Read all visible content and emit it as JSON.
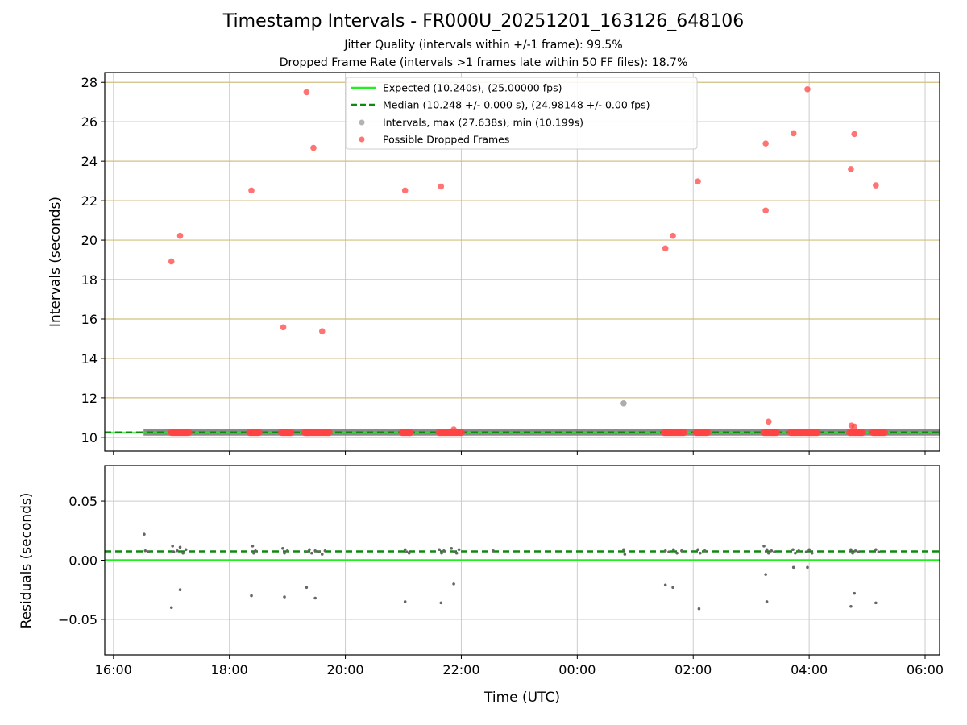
{
  "chart_data": [
    {
      "type": "scatter",
      "title": "Timestamp Intervals - FR000U_20251201_163126_648106",
      "subtitles": [
        "Jitter Quality (intervals within +/-1 frame): 99.5%",
        "Dropped Frame Rate (intervals >1 frames late within 50 FF files): 18.7%"
      ],
      "xlabel": "",
      "ylabel": "Intervals (seconds)",
      "xlim": [
        15.85,
        30.25
      ],
      "ylim": [
        9.3,
        28.5
      ],
      "x_unit": "hours since 00:00 of the first day (UTC)",
      "x_ticks": [
        16,
        18,
        20,
        22,
        24,
        26,
        28,
        30
      ],
      "x_tick_labels": [
        "16:00",
        "18:00",
        "20:00",
        "22:00",
        "00:00",
        "02:00",
        "04:00",
        "06:00"
      ],
      "y_ticks": [
        10,
        12,
        14,
        16,
        18,
        20,
        22,
        24,
        26,
        28
      ],
      "y_tick_labels": [
        "10",
        "12",
        "14",
        "16",
        "18",
        "20",
        "22",
        "24",
        "26",
        "28"
      ],
      "grid": true,
      "expected_interval": 10.24,
      "median_interval": 10.248,
      "legend": {
        "placement": "upper center",
        "entries": [
          {
            "label": "Expected (10.240s), (25.00000 fps)",
            "color": "#22ee22",
            "style": "solid-line"
          },
          {
            "label": "Median (10.248 +/- 0.000 s), (24.98148 +/- 0.00 fps)",
            "color": "#118811",
            "style": "dashed-line"
          },
          {
            "label": "Intervals, max (27.638s), min (10.199s)",
            "color": "#999999",
            "style": "marker"
          },
          {
            "label": "Possible Dropped Frames",
            "color": "#ff4444",
            "style": "marker"
          }
        ]
      },
      "intervals_band": {
        "x_start": 16.52,
        "x_end": 30.25,
        "y": 10.248
      },
      "series": [
        {
          "name": "Possible Dropped Frames",
          "color": "#ff4444",
          "points": [
            [
              17.0,
              18.92
            ],
            [
              17.15,
              20.22
            ],
            [
              18.38,
              22.52
            ],
            [
              18.93,
              15.58
            ],
            [
              19.33,
              27.5
            ],
            [
              19.45,
              24.68
            ],
            [
              19.6,
              15.38
            ],
            [
              21.03,
              22.52
            ],
            [
              21.65,
              22.72
            ],
            [
              25.52,
              19.58
            ],
            [
              25.65,
              20.22
            ],
            [
              26.08,
              22.98
            ],
            [
              27.25,
              24.9
            ],
            [
              27.25,
              21.5
            ],
            [
              27.73,
              25.42
            ],
            [
              27.97,
              27.65
            ],
            [
              28.72,
              23.6
            ],
            [
              28.78,
              25.38
            ],
            [
              29.15,
              22.78
            ],
            [
              27.3,
              10.8
            ],
            [
              21.87,
              10.4
            ],
            [
              28.73,
              10.6
            ],
            [
              28.78,
              10.55
            ]
          ],
          "clusters": [
            {
              "x_start": 17.0,
              "x_end": 17.3,
              "y": 10.25
            },
            {
              "x_start": 18.35,
              "x_end": 18.52,
              "y": 10.25
            },
            {
              "x_start": 18.9,
              "x_end": 19.07,
              "y": 10.25
            },
            {
              "x_start": 19.3,
              "x_end": 19.72,
              "y": 10.25
            },
            {
              "x_start": 20.98,
              "x_end": 21.12,
              "y": 10.25
            },
            {
              "x_start": 21.62,
              "x_end": 22.0,
              "y": 10.25
            },
            {
              "x_start": 25.5,
              "x_end": 25.85,
              "y": 10.25
            },
            {
              "x_start": 26.05,
              "x_end": 26.25,
              "y": 10.25
            },
            {
              "x_start": 27.22,
              "x_end": 27.45,
              "y": 10.25
            },
            {
              "x_start": 27.68,
              "x_end": 27.88,
              "y": 10.25
            },
            {
              "x_start": 27.92,
              "x_end": 28.15,
              "y": 10.25
            },
            {
              "x_start": 28.7,
              "x_end": 28.92,
              "y": 10.25
            },
            {
              "x_start": 29.1,
              "x_end": 29.3,
              "y": 10.25
            }
          ]
        },
        {
          "name": "Intervals",
          "color": "#999999",
          "points": [
            [
              24.8,
              11.72
            ]
          ]
        }
      ]
    },
    {
      "type": "scatter",
      "xlabel": "Time (UTC)",
      "ylabel": "Residuals (seconds)",
      "xlim": [
        15.85,
        30.25
      ],
      "ylim": [
        -0.08,
        0.08
      ],
      "x_ticks": [
        16,
        18,
        20,
        22,
        24,
        26,
        28,
        30
      ],
      "x_tick_labels": [
        "16:00",
        "18:00",
        "20:00",
        "22:00",
        "00:00",
        "02:00",
        "04:00",
        "06:00"
      ],
      "y_ticks": [
        0.05,
        0.0,
        -0.05
      ],
      "y_tick_labels": [
        "0.05",
        "0.00",
        "−0.05"
      ],
      "grid": true,
      "expected_residual": 0.0,
      "median_residual": 0.0075,
      "series": [
        {
          "name": "Residuals",
          "color": "#666666",
          "points": [
            [
              16.53,
              0.022
            ],
            [
              16.55,
              0.008
            ],
            [
              16.6,
              0.007
            ],
            [
              17.02,
              0.012
            ],
            [
              17.04,
              0.007
            ],
            [
              17.1,
              0.008
            ],
            [
              17.15,
              0.011
            ],
            [
              17.2,
              0.006
            ],
            [
              17.25,
              0.009
            ],
            [
              17.0,
              -0.04
            ],
            [
              17.15,
              -0.025
            ],
            [
              18.4,
              0.012
            ],
            [
              18.42,
              0.006
            ],
            [
              18.45,
              0.008
            ],
            [
              18.38,
              -0.03
            ],
            [
              18.92,
              0.01
            ],
            [
              18.95,
              0.006
            ],
            [
              19.0,
              0.008
            ],
            [
              18.95,
              -0.031
            ],
            [
              19.33,
              0.007
            ],
            [
              19.38,
              0.009
            ],
            [
              19.42,
              0.006
            ],
            [
              19.48,
              0.008
            ],
            [
              19.55,
              0.007
            ],
            [
              19.6,
              0.005
            ],
            [
              19.65,
              0.008
            ],
            [
              19.33,
              -0.023
            ],
            [
              19.48,
              -0.032
            ],
            [
              21.03,
              0.009
            ],
            [
              21.06,
              0.007
            ],
            [
              21.1,
              0.006
            ],
            [
              21.03,
              -0.035
            ],
            [
              21.62,
              0.009
            ],
            [
              21.66,
              0.006
            ],
            [
              21.7,
              0.008
            ],
            [
              21.83,
              0.01
            ],
            [
              21.88,
              0.007
            ],
            [
              21.92,
              0.006
            ],
            [
              21.96,
              0.009
            ],
            [
              21.65,
              -0.036
            ],
            [
              21.87,
              -0.02
            ],
            [
              22.55,
              0.008
            ],
            [
              24.8,
              0.009
            ],
            [
              24.82,
              0.005
            ],
            [
              25.52,
              0.008
            ],
            [
              25.58,
              0.007
            ],
            [
              25.66,
              0.009
            ],
            [
              25.72,
              0.006
            ],
            [
              25.8,
              0.008
            ],
            [
              25.52,
              -0.021
            ],
            [
              25.65,
              -0.023
            ],
            [
              26.08,
              0.009
            ],
            [
              26.12,
              0.006
            ],
            [
              26.2,
              0.008
            ],
            [
              26.1,
              -0.041
            ],
            [
              27.22,
              0.012
            ],
            [
              27.27,
              0.009
            ],
            [
              27.3,
              0.006
            ],
            [
              27.35,
              0.008
            ],
            [
              27.4,
              0.007
            ],
            [
              27.25,
              -0.012
            ],
            [
              27.27,
              -0.035
            ],
            [
              27.72,
              0.009
            ],
            [
              27.76,
              0.006
            ],
            [
              27.82,
              0.008
            ],
            [
              27.95,
              0.007
            ],
            [
              28.0,
              0.009
            ],
            [
              28.05,
              0.006
            ],
            [
              27.73,
              -0.006
            ],
            [
              27.97,
              -0.006
            ],
            [
              28.72,
              0.009
            ],
            [
              28.75,
              0.006
            ],
            [
              28.8,
              0.008
            ],
            [
              28.85,
              0.007
            ],
            [
              28.72,
              -0.039
            ],
            [
              28.78,
              -0.028
            ],
            [
              29.15,
              0.009
            ],
            [
              29.2,
              0.007
            ],
            [
              29.15,
              -0.036
            ]
          ]
        }
      ]
    }
  ]
}
